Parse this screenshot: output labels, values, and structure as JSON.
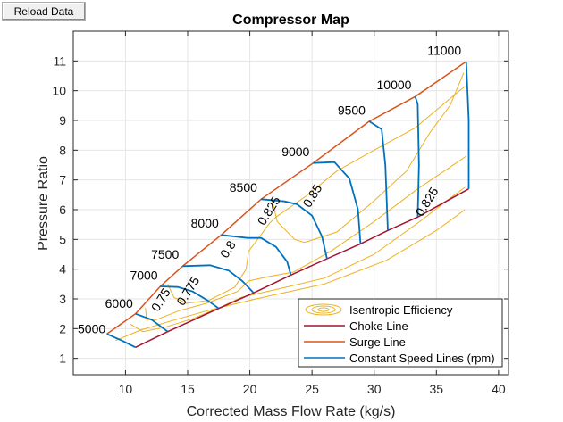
{
  "toolbar": {
    "reload_label": "Reload Data"
  },
  "colors": {
    "efficiency": "#EDB120",
    "choke": "#A2142F",
    "surge": "#D95319",
    "speed": "#0072BD",
    "grid": "#e6e6e6",
    "axis": "#262626"
  },
  "chart_data": {
    "type": "line",
    "title": "Compressor Map",
    "xlabel": "Corrected Mass Flow Rate (kg/s)",
    "ylabel": "Pressure Ratio",
    "xlim": [
      5.8,
      40.8
    ],
    "ylim": [
      0.45,
      12
    ],
    "xticks": [
      10,
      15,
      20,
      25,
      30,
      35,
      40
    ],
    "yticks": [
      1,
      2,
      3,
      4,
      5,
      6,
      7,
      8,
      9,
      10,
      11
    ],
    "grid": true,
    "legend": {
      "position": "bottom-right",
      "entries": [
        {
          "key": "efficiency",
          "label": "Isentropic Efficiency"
        },
        {
          "key": "choke",
          "label": "Choke Line"
        },
        {
          "key": "surge",
          "label": "Surge Line"
        },
        {
          "key": "speed",
          "label": "Constant Speed Lines (rpm)"
        }
      ]
    },
    "surge_line": {
      "name": "Surge Line",
      "x": [
        8.5,
        10.8,
        12.8,
        14.6,
        17.7,
        20.9,
        25.1,
        29.6,
        33.3,
        37.4
      ],
      "y": [
        1.82,
        2.5,
        3.42,
        4.1,
        5.15,
        6.35,
        7.57,
        8.97,
        9.8,
        10.98
      ]
    },
    "choke_line": {
      "name": "Choke Line",
      "x": [
        10.8,
        13.4,
        17.5,
        20.3,
        23.3,
        26.2,
        28.9,
        31.1,
        33.5,
        37.6
      ],
      "y": [
        1.37,
        1.9,
        2.68,
        3.2,
        3.8,
        4.35,
        4.85,
        5.3,
        5.75,
        6.7
      ]
    },
    "speed_lines": [
      {
        "rpm": "5000",
        "x": [
          8.5,
          9.7,
          10.8
        ],
        "y": [
          1.82,
          1.6,
          1.37
        ]
      },
      {
        "rpm": "6000",
        "x": [
          10.8,
          12.1,
          13.4
        ],
        "y": [
          2.5,
          2.3,
          1.9
        ]
      },
      {
        "rpm": "7000",
        "x": [
          12.8,
          14.2,
          15.4,
          16.6,
          17.5
        ],
        "y": [
          3.42,
          3.4,
          3.25,
          2.95,
          2.68
        ]
      },
      {
        "rpm": "7500",
        "x": [
          14.6,
          16.8,
          18.3,
          19.4,
          20.3
        ],
        "y": [
          4.1,
          4.13,
          3.95,
          3.6,
          3.2
        ]
      },
      {
        "rpm": "8000",
        "x": [
          17.7,
          19.8,
          20.9,
          22.1,
          23.0,
          23.3
        ],
        "y": [
          5.15,
          5.05,
          5.05,
          4.75,
          4.25,
          3.8
        ]
      },
      {
        "rpm": "8500",
        "x": [
          20.9,
          22.8,
          23.8,
          25.0,
          25.8,
          26.2
        ],
        "y": [
          6.35,
          6.28,
          6.18,
          5.8,
          5.1,
          4.35
        ]
      },
      {
        "rpm": "9000",
        "x": [
          25.1,
          26.8,
          28.0,
          28.7,
          28.9
        ],
        "y": [
          7.57,
          7.6,
          7.05,
          6.0,
          4.85
        ]
      },
      {
        "rpm": "9500",
        "x": [
          29.6,
          30.6,
          30.9,
          31.1
        ],
        "y": [
          8.97,
          8.7,
          7.5,
          5.3
        ]
      },
      {
        "rpm": "10000",
        "x": [
          33.3,
          33.5,
          33.6,
          33.5
        ],
        "y": [
          9.8,
          9.55,
          7.5,
          5.75
        ]
      },
      {
        "rpm": "11000",
        "x": [
          37.4,
          37.6,
          37.6
        ],
        "y": [
          10.98,
          9.0,
          6.7
        ]
      }
    ],
    "speed_labels": [
      {
        "text": "5000",
        "x": 8.4,
        "y": 1.85
      },
      {
        "text": "6000",
        "x": 10.6,
        "y": 2.7
      },
      {
        "text": "7000",
        "x": 12.6,
        "y": 3.65
      },
      {
        "text": "7500",
        "x": 14.3,
        "y": 4.35
      },
      {
        "text": "8000",
        "x": 17.5,
        "y": 5.4
      },
      {
        "text": "8500",
        "x": 20.6,
        "y": 6.6
      },
      {
        "text": "9000",
        "x": 24.8,
        "y": 7.8
      },
      {
        "text": "9500",
        "x": 29.3,
        "y": 9.2
      },
      {
        "text": "10000",
        "x": 33.0,
        "y": 10.05
      },
      {
        "text": "11000",
        "x": 37.0,
        "y": 11.2
      }
    ],
    "efficiency_contours": [
      {
        "level": "0.75",
        "x": [
          9.2,
          11.2,
          14.0,
          17.0,
          20.5,
          26.0,
          31.0,
          35.0,
          37.3
        ],
        "y": [
          1.6,
          1.95,
          2.3,
          2.65,
          3.0,
          3.5,
          4.3,
          5.3,
          6.0
        ]
      },
      {
        "level": "0.775",
        "x": [
          10.4,
          11.4,
          13.2,
          15.5,
          17.8,
          19.3,
          22.5,
          26.0,
          30.0,
          33.5,
          36.0,
          37.3
        ],
        "y": [
          2.15,
          1.9,
          2.05,
          2.35,
          2.75,
          3.05,
          3.35,
          3.7,
          4.5,
          5.55,
          6.35,
          6.75
        ]
      },
      {
        "level": "0.8",
        "x": [
          11.6,
          11.7,
          12.5,
          14.3,
          16.5,
          19.0,
          19.9,
          21.5,
          23.5,
          26.5,
          30.0,
          33.5,
          36.0,
          37.4
        ],
        "y": [
          2.7,
          2.3,
          2.3,
          2.6,
          2.85,
          3.25,
          3.6,
          3.75,
          3.9,
          4.6,
          5.6,
          6.7,
          7.4,
          7.8
        ]
      },
      {
        "level": "0.825",
        "x": [
          13.4,
          13.9,
          14.9,
          16.7,
          18.8,
          19.7,
          19.9,
          21.6,
          22.1,
          24.5,
          27.0,
          30.0,
          33.3,
          36.0,
          37.3
        ],
        "y": [
          3.5,
          3.05,
          2.85,
          2.95,
          3.4,
          4.0,
          4.6,
          5.55,
          5.75,
          6.45,
          7.3,
          8.0,
          8.75,
          9.7,
          10.15
        ]
      },
      {
        "level": "0.85",
        "x": [
          21.8,
          22.2,
          23.6,
          24.4,
          27.0,
          30.0,
          32.6,
          34.5,
          36.1,
          36.9,
          37.2
        ],
        "y": [
          6.3,
          5.6,
          5.0,
          4.9,
          5.25,
          6.3,
          7.3,
          8.6,
          9.5,
          10.3,
          10.6
        ]
      }
    ],
    "efficiency_labels": [
      {
        "text": "0.75",
        "x": 12.9,
        "y": 2.95,
        "angle": -58
      },
      {
        "text": "0.775",
        "x": 15.1,
        "y": 3.25,
        "angle": -58
      },
      {
        "text": "0.8",
        "x": 18.3,
        "y": 4.65,
        "angle": -58
      },
      {
        "text": "0.825",
        "x": 21.6,
        "y": 5.95,
        "angle": -58
      },
      {
        "text": "0.85",
        "x": 25.1,
        "y": 6.45,
        "angle": -58
      },
      {
        "text": "0.825",
        "x": 34.3,
        "y": 6.25,
        "angle": -58
      }
    ]
  }
}
